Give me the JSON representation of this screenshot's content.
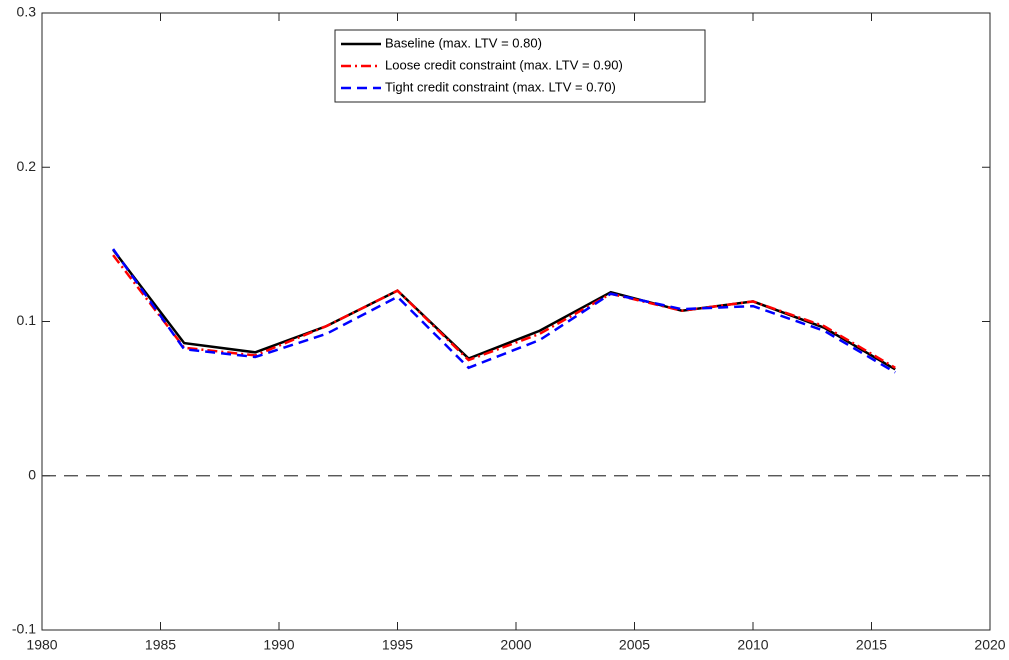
{
  "chart_data": {
    "type": "line",
    "x": [
      1983,
      1986,
      1989,
      1992,
      1995,
      1998,
      2001,
      2004,
      2007,
      2010,
      2013,
      2016
    ],
    "series": [
      {
        "name": "Baseline (max. LTV = 0.80)",
        "color": "#000000",
        "style": "solid",
        "values": [
          0.1465,
          0.086,
          0.08,
          0.097,
          0.12,
          0.076,
          0.094,
          0.119,
          0.107,
          0.113,
          0.096,
          0.069
        ]
      },
      {
        "name": "Loose credit constraint (max. LTV = 0.90)",
        "color": "#ff0000",
        "style": "dashdot",
        "values": [
          0.143,
          0.083,
          0.078,
          0.097,
          0.12,
          0.075,
          0.092,
          0.118,
          0.107,
          0.113,
          0.097,
          0.07
        ]
      },
      {
        "name": "Tight credit constraint  (max. LTV = 0.70)",
        "color": "#0000ff",
        "style": "dashed",
        "values": [
          0.147,
          0.082,
          0.077,
          0.092,
          0.116,
          0.07,
          0.088,
          0.118,
          0.108,
          0.11,
          0.094,
          0.067
        ]
      }
    ],
    "xlim": [
      1980,
      2020
    ],
    "xticks": [
      1980,
      1985,
      1990,
      1995,
      2000,
      2005,
      2010,
      2015,
      2020
    ],
    "ylim": [
      -0.1,
      0.3
    ],
    "yticks": [
      -0.1,
      0,
      0.1,
      0.2,
      0.3
    ],
    "hlines": [
      0
    ],
    "legend": "upper-center"
  }
}
